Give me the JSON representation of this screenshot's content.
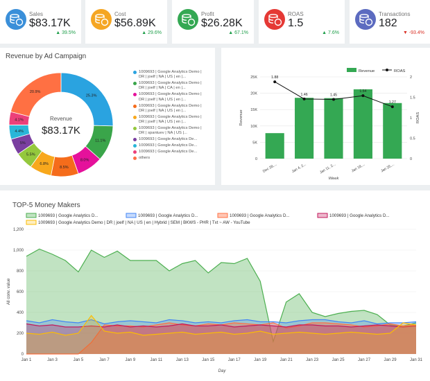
{
  "kpis": [
    {
      "label": "Sales",
      "value": "$83.17K",
      "change": "39.5%",
      "direction": "up",
      "color": "#3a8fd9",
      "icon": "database-dollar-icon"
    },
    {
      "label": "Cost",
      "value": "$56.89K",
      "change": "29.6%",
      "direction": "up",
      "color": "#f5a623",
      "icon": "database-dollar-icon"
    },
    {
      "label": "Profit",
      "value": "$26.28K",
      "change": "67.1%",
      "direction": "up",
      "color": "#34a853",
      "icon": "database-dollar-icon"
    },
    {
      "label": "ROAS",
      "value": "1.5",
      "change": "7.6%",
      "direction": "up",
      "color": "#e53935",
      "icon": "database-dollar-icon"
    },
    {
      "label": "Transactions",
      "value": "182",
      "change": "-93.4%",
      "direction": "down",
      "color": "#5c6bc0",
      "icon": "database-dollar-icon"
    }
  ],
  "donut": {
    "title": "Revenue by Ad Campaign",
    "center_label": "Revenue",
    "center_value": "$83.17K",
    "slices": [
      {
        "pct": 25.3,
        "label": "25.3%",
        "color": "#2aa3e0"
      },
      {
        "pct": 11.1,
        "label": "11.1%",
        "color": "#3aa54a"
      },
      {
        "pct": 8.0,
        "label": "8.0%",
        "color": "#e5119b"
      },
      {
        "pct": 8.5,
        "label": "8.5%",
        "color": "#f56c1b"
      },
      {
        "pct": 6.8,
        "label": "6.8%",
        "color": "#f8a81c"
      },
      {
        "pct": 5.5,
        "label": "5.5%",
        "color": "#94c83d"
      },
      {
        "pct": 5.0,
        "label": "5%",
        "color": "#7a3fa0"
      },
      {
        "pct": 4.4,
        "label": "4.4%",
        "color": "#29b6d8"
      },
      {
        "pct": 4.1,
        "label": "4.1%",
        "color": "#ec407a"
      },
      {
        "pct": 20.9,
        "label": "20.9%",
        "color": "#ff7043"
      }
    ],
    "legend": [
      {
        "text": "1009693 | Google Analytics Demo | DR | joelf | NA | US | en |...",
        "color": "#2aa3e0"
      },
      {
        "text": "1009693 | Google Analytics Demo | DR | joelf | NA | CA | en |...",
        "color": "#3aa54a"
      },
      {
        "text": "1009693 | Google Analytics Demo | DR | joelf | NA | US | en |...",
        "color": "#e5119b"
      },
      {
        "text": "1009693 | Google Analytics Demo | DR | joelf | NA | US | en |...",
        "color": "#f56c1b"
      },
      {
        "text": "1009693 | Google Analytics Demo | DR | joelf | NA | US | en |...",
        "color": "#f8a81c"
      },
      {
        "text": "1009693 | Google Analytics Demo | DR | spantuev | NA | US |...",
        "color": "#94c83d"
      },
      {
        "text": "1009693 | Google Analytics De...",
        "color": "#7a3fa0"
      },
      {
        "text": "1009693 | Google Analytics De...",
        "color": "#29b6d8"
      },
      {
        "text": "1009693 | Google Analytics De...",
        "color": "#ec407a"
      },
      {
        "text": "others",
        "color": "#ff7043"
      }
    ]
  },
  "chart_data": [
    {
      "type": "bar",
      "series": [
        {
          "name": "Revenue",
          "values": [
            7800,
            18600,
            18500,
            21200,
            17000
          ],
          "color": "#34a853"
        },
        {
          "name": "ROAS",
          "values": [
            1.88,
            1.46,
            1.45,
            1.54,
            1.27
          ],
          "color": "#111111"
        }
      ],
      "categories": [
        "Dec 28,...",
        "Jan 4, 2...",
        "Jan 11, 2...",
        "Jan 18,...",
        "Jan 25,..."
      ],
      "xlabel": "Week",
      "ylabel": "Revenue",
      "y2label": "ROAS",
      "ylim": [
        0,
        25000
      ],
      "y2lim": [
        0,
        2
      ],
      "yticks": [
        "0",
        "5K",
        "10K",
        "15K",
        "20K",
        "25K"
      ],
      "y2ticks": [
        "0",
        "0.5",
        "1",
        "1.5",
        "2"
      ],
      "roas_labels": [
        "1.88",
        "1.46",
        "1.45",
        "1.54",
        "1.27"
      ],
      "grid": true,
      "legend_position": "top-right"
    },
    {
      "type": "area",
      "title": "TOP-5 Money Makers",
      "xlabel": "Day",
      "ylabel": "All conv. value",
      "ylim": [
        0,
        1200
      ],
      "yticks": [
        "0",
        "200",
        "400",
        "600",
        "800",
        "1,000",
        "1,200"
      ],
      "x_ticks": [
        "Jan 1",
        "Jan 3",
        "Jan 5",
        "Jan 7",
        "Jan 9",
        "Jan 11",
        "Jan 13",
        "Jan 15",
        "Jan 17",
        "Jan 19",
        "Jan 21",
        "Jan 23",
        "Jan 25",
        "Jan 27",
        "Jan 29",
        "Jan 31"
      ],
      "legend_position": "top",
      "series": [
        {
          "name": "1009693 | Google Analytics D...",
          "color": "#4caf50",
          "fill": "rgba(76,175,80,0.35)",
          "values": [
            940,
            1010,
            960,
            900,
            790,
            1000,
            930,
            990,
            900,
            900,
            900,
            800,
            870,
            900,
            780,
            880,
            870,
            920,
            700,
            120,
            500,
            580,
            400,
            360,
            390,
            410,
            420,
            380,
            280,
            270,
            300
          ]
        },
        {
          "name": "1009693 | Google Analytics D...",
          "color": "#4285f4",
          "fill": "rgba(66,133,244,0.30)",
          "values": [
            320,
            300,
            330,
            310,
            300,
            330,
            290,
            310,
            320,
            310,
            300,
            330,
            320,
            300,
            310,
            300,
            320,
            330,
            310,
            310,
            300,
            320,
            330,
            330,
            310,
            300,
            320,
            290,
            300,
            300,
            310
          ]
        },
        {
          "name": "1009693 | Google Analytics D...",
          "color": "#ff7043",
          "fill": "rgba(255,112,67,0.40)",
          "values": [
            0,
            0,
            0,
            0,
            0,
            110,
            280,
            270,
            270,
            260,
            280,
            300,
            280,
            270,
            290,
            280,
            300,
            290,
            280,
            300,
            250,
            270,
            300,
            300,
            290,
            280,
            260,
            270,
            290,
            270,
            280
          ]
        },
        {
          "name": "1009693 | Google Analytics D...",
          "color": "#c2185b",
          "fill": "rgba(194,24,91,0.30)",
          "values": [
            290,
            270,
            280,
            260,
            260,
            270,
            260,
            280,
            260,
            270,
            260,
            270,
            290,
            270,
            270,
            280,
            260,
            270,
            280,
            270,
            260,
            280,
            280,
            270,
            270,
            260,
            270,
            280,
            270,
            260,
            270
          ]
        },
        {
          "name": "1009693 | Google Analytics Demo | DR | joelf | NA | US | en | Hybrid | SEM | BKWS - PHR | Txt ~ AW - YouTube",
          "color": "#fbbc05",
          "fill": "rgba(251,188,5,0.25)",
          "values": [
            200,
            190,
            210,
            180,
            200,
            370,
            220,
            200,
            210,
            180,
            190,
            200,
            210,
            190,
            200,
            210,
            190,
            200,
            220,
            190,
            200,
            210,
            200,
            190,
            200,
            210,
            200,
            190,
            200,
            300,
            280
          ]
        }
      ]
    }
  ]
}
